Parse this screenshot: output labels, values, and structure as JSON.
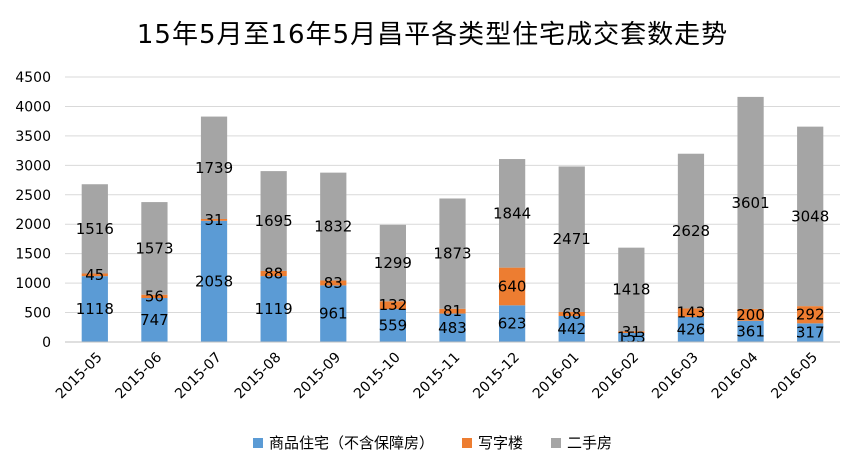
{
  "chart_data": {
    "type": "bar",
    "stacked": true,
    "title": "15年5月至16年5月昌平各类型住宅成交套数走势",
    "categories": [
      "2015-05",
      "2015-06",
      "2015-07",
      "2015-08",
      "2015-09",
      "2015-10",
      "2015-11",
      "2015-12",
      "2016-01",
      "2016-02",
      "2016-03",
      "2016-04",
      "2016-05"
    ],
    "series": [
      {
        "name": "商品住宅（不含保障房）",
        "color": "#5b9bd5",
        "values": [
          1118,
          747,
          2058,
          1119,
          961,
          559,
          483,
          623,
          442,
          153,
          426,
          361,
          317
        ]
      },
      {
        "name": "写字楼",
        "color": "#ed7d31",
        "values": [
          45,
          56,
          31,
          88,
          83,
          132,
          81,
          640,
          68,
          31,
          143,
          200,
          292
        ]
      },
      {
        "name": "二手房",
        "color": "#a5a5a5",
        "values": [
          1516,
          1573,
          1739,
          1695,
          1832,
          1299,
          1873,
          1844,
          2471,
          1418,
          2628,
          3601,
          3048
        ]
      }
    ],
    "ylim": [
      0,
      4500
    ],
    "yticks": [
      "0",
      "500",
      "1000",
      "1500",
      "2000",
      "2500",
      "3000",
      "3500",
      "4000",
      "4500"
    ],
    "grid": true,
    "legend": "bottom"
  }
}
